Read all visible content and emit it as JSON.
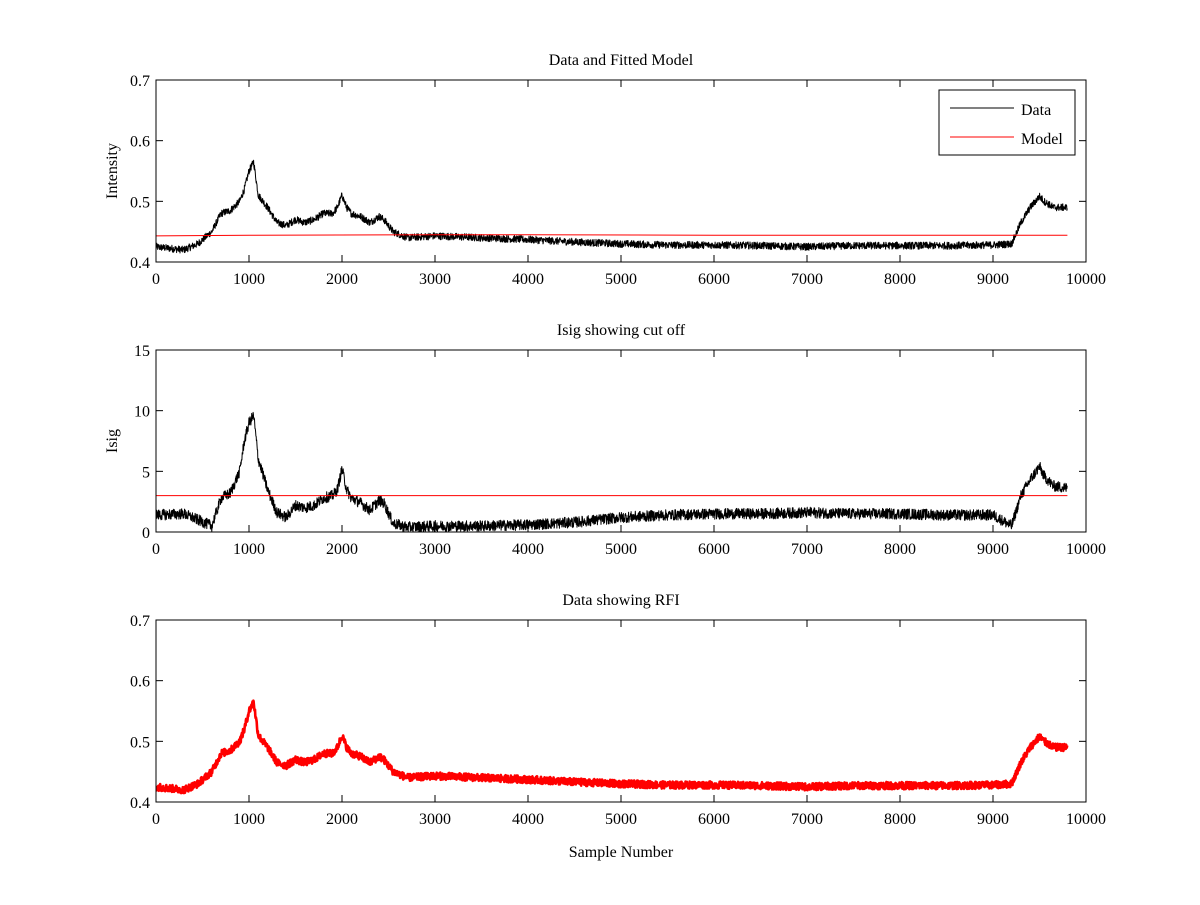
{
  "chart_data": [
    {
      "type": "line",
      "title": "Data and Fitted Model",
      "xlabel": "",
      "ylabel": "Intensity",
      "xlim": [
        0,
        10000
      ],
      "ylim": [
        0.4,
        0.7
      ],
      "xticks": [
        "0",
        "1000",
        "2000",
        "3000",
        "4000",
        "5000",
        "6000",
        "7000",
        "8000",
        "9000",
        "10000"
      ],
      "yticks": [
        "0.4",
        "0.5",
        "0.6",
        "0.7"
      ],
      "grid": false,
      "legend": "top-right",
      "series": [
        {
          "name": "Data",
          "color": "#000000",
          "noise": 0.006,
          "x": [
            0,
            300,
            450,
            600,
            700,
            800,
            900,
            950,
            1000,
            1050,
            1100,
            1200,
            1300,
            1400,
            1500,
            1600,
            1700,
            1800,
            1900,
            1950,
            2000,
            2050,
            2100,
            2200,
            2300,
            2400,
            2450,
            2550,
            2700,
            3000,
            3500,
            4000,
            4500,
            5000,
            5500,
            6000,
            6500,
            7000,
            7500,
            8000,
            8500,
            9000,
            9200,
            9300,
            9400,
            9500,
            9550,
            9650,
            9800
          ],
          "y": [
            0.425,
            0.42,
            0.43,
            0.45,
            0.48,
            0.485,
            0.5,
            0.52,
            0.55,
            0.565,
            0.51,
            0.49,
            0.465,
            0.46,
            0.47,
            0.465,
            0.47,
            0.48,
            0.48,
            0.49,
            0.51,
            0.49,
            0.48,
            0.475,
            0.465,
            0.475,
            0.47,
            0.45,
            0.44,
            0.443,
            0.44,
            0.437,
            0.433,
            0.43,
            0.428,
            0.428,
            0.427,
            0.425,
            0.427,
            0.427,
            0.427,
            0.428,
            0.43,
            0.465,
            0.49,
            0.508,
            0.5,
            0.49,
            0.49
          ]
        },
        {
          "name": "Model",
          "color": "#ff0000",
          "noise": 0,
          "x": [
            0,
            1000,
            3000,
            4000,
            6000,
            8000,
            9800
          ],
          "y": [
            0.443,
            0.444,
            0.445,
            0.445,
            0.444,
            0.444,
            0.444
          ]
        }
      ]
    },
    {
      "type": "line",
      "title": "Isig showing cut off",
      "xlabel": "",
      "ylabel": "Isig",
      "xlim": [
        0,
        10000
      ],
      "ylim": [
        0,
        15
      ],
      "xticks": [
        "0",
        "1000",
        "2000",
        "3000",
        "4000",
        "5000",
        "6000",
        "7000",
        "8000",
        "9000",
        "10000"
      ],
      "yticks": [
        "0",
        "5",
        "10",
        "15"
      ],
      "grid": false,
      "series": [
        {
          "name": "",
          "color": "#000000",
          "noise": 0.45,
          "x": [
            0,
            300,
            450,
            600,
            700,
            800,
            900,
            950,
            1000,
            1050,
            1100,
            1200,
            1300,
            1400,
            1500,
            1600,
            1700,
            1800,
            1900,
            1950,
            2000,
            2050,
            2100,
            2200,
            2300,
            2400,
            2450,
            2550,
            2700,
            3000,
            3500,
            4000,
            4500,
            5000,
            5500,
            6000,
            6500,
            7000,
            7500,
            8000,
            8500,
            9000,
            9200,
            9300,
            9400,
            9500,
            9550,
            9650,
            9800
          ],
          "y": [
            1.4,
            1.5,
            1.0,
            0.5,
            2.8,
            3.2,
            5.0,
            7.5,
            9.0,
            9.6,
            6.0,
            3.5,
            1.6,
            1.2,
            2.2,
            2.0,
            2.2,
            2.8,
            3.0,
            3.5,
            5.2,
            3.5,
            2.8,
            2.4,
            1.8,
            2.6,
            2.4,
            0.7,
            0.4,
            0.5,
            0.5,
            0.6,
            0.8,
            1.2,
            1.4,
            1.5,
            1.5,
            1.6,
            1.5,
            1.5,
            1.4,
            1.4,
            0.5,
            3.0,
            4.3,
            5.4,
            4.6,
            3.8,
            3.6
          ]
        },
        {
          "name": "",
          "color": "#ff0000",
          "noise": 0,
          "x": [
            0,
            9800
          ],
          "y": [
            3.0,
            3.0
          ]
        }
      ]
    },
    {
      "type": "line",
      "title": "Data showing RFI",
      "xlabel": "Sample Number",
      "ylabel": "",
      "xlim": [
        0,
        10000
      ],
      "ylim": [
        0.4,
        0.7
      ],
      "xticks": [
        "0",
        "1000",
        "2000",
        "3000",
        "4000",
        "5000",
        "6000",
        "7000",
        "8000",
        "9000",
        "10000"
      ],
      "yticks": [
        "0.4",
        "0.5",
        "0.6",
        "0.7"
      ],
      "grid": false,
      "series": [
        {
          "name": "",
          "color": "#ff0000",
          "noise": 0.006,
          "x": [
            0,
            300,
            450,
            600,
            700,
            800,
            900,
            950,
            1000,
            1050,
            1100,
            1200,
            1300,
            1400,
            1500,
            1600,
            1700,
            1800,
            1900,
            1950,
            2000,
            2050,
            2100,
            2200,
            2300,
            2400,
            2450,
            2550,
            2700,
            3000,
            3500,
            4000,
            4500,
            5000,
            5500,
            6000,
            6500,
            7000,
            7500,
            8000,
            8500,
            9000,
            9200,
            9300,
            9400,
            9500,
            9550,
            9650,
            9800
          ],
          "y": [
            0.425,
            0.42,
            0.43,
            0.45,
            0.48,
            0.485,
            0.5,
            0.52,
            0.55,
            0.565,
            0.51,
            0.49,
            0.465,
            0.46,
            0.47,
            0.465,
            0.47,
            0.48,
            0.48,
            0.49,
            0.51,
            0.49,
            0.48,
            0.475,
            0.465,
            0.475,
            0.47,
            0.45,
            0.44,
            0.443,
            0.44,
            0.437,
            0.433,
            0.43,
            0.428,
            0.428,
            0.427,
            0.425,
            0.427,
            0.427,
            0.427,
            0.428,
            0.43,
            0.465,
            0.49,
            0.508,
            0.5,
            0.49,
            0.49
          ]
        }
      ]
    }
  ]
}
